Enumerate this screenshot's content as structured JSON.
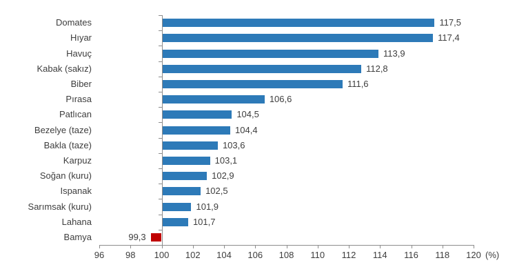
{
  "chart_data": {
    "type": "bar",
    "orientation": "horizontal",
    "title": "",
    "xlabel": "",
    "ylabel": "",
    "categories": [
      "Domates",
      "Hıyar",
      "Havuç",
      "Kabak (sakız)",
      "Biber",
      "Pırasa",
      "Patlıcan",
      "Bezelye (taze)",
      "Bakla (taze)",
      "Karpuz",
      "Soğan (kuru)",
      "Ispanak",
      "Sarımsak (kuru)",
      "Lahana",
      "Bamya"
    ],
    "values": [
      117.5,
      117.4,
      113.9,
      112.8,
      111.6,
      106.6,
      104.5,
      104.4,
      103.6,
      103.1,
      102.9,
      102.5,
      101.9,
      101.7,
      99.3
    ],
    "value_labels": [
      "117,5",
      "117,4",
      "113,9",
      "112,8",
      "111,6",
      "106,6",
      "104,5",
      "104,4",
      "103,6",
      "103,1",
      "102,9",
      "102,5",
      "101,9",
      "101,7",
      "99,3"
    ],
    "baseline": 100,
    "xlim": [
      96,
      120
    ],
    "x_ticks": [
      96,
      98,
      100,
      102,
      104,
      106,
      108,
      110,
      112,
      114,
      116,
      118,
      120
    ],
    "x_tick_labels": [
      "96",
      "98",
      "100",
      "102",
      "104",
      "106",
      "108",
      "110",
      "112",
      "114",
      "116",
      "118",
      "120"
    ],
    "axis_unit_label": "(%)",
    "grid": false,
    "legend": false,
    "colors": {
      "bar_positive": "#2D7AB8",
      "bar_negative": "#C00000",
      "axis": "#8C8C8C",
      "text": "#3d3d3d"
    }
  }
}
